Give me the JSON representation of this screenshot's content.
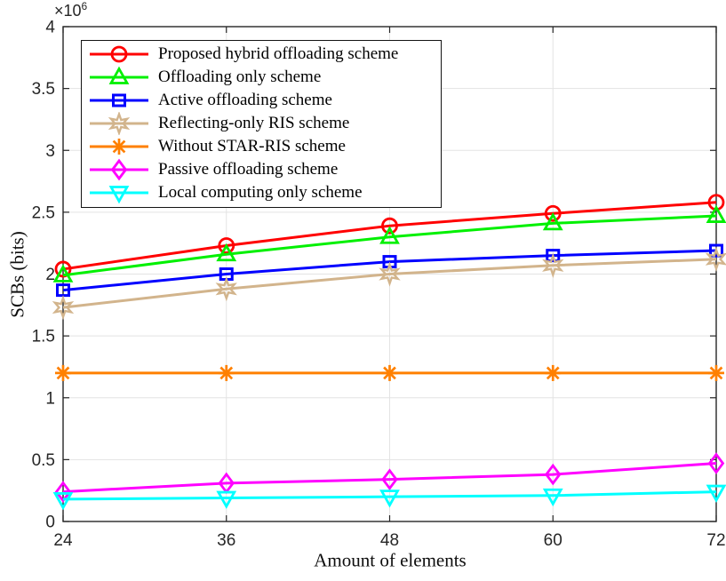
{
  "chart_data": {
    "type": "line",
    "title": "",
    "xlabel": "Amount of elements",
    "ylabel": "SCBs (bits)",
    "y_multiplier": {
      "base": "×10",
      "exp": "6"
    },
    "xlim": [
      24,
      72
    ],
    "ylim": [
      0,
      4000000
    ],
    "grid": true,
    "legend_position": "top-left",
    "x_tick_values": [
      24,
      36,
      48,
      60,
      72
    ],
    "x_tick_labels": [
      "24",
      "36",
      "48",
      "60",
      "72"
    ],
    "y_tick_values": [
      0,
      500000,
      1000000,
      1500000,
      2000000,
      2500000,
      3000000,
      3500000,
      4000000
    ],
    "y_tick_labels": [
      "0",
      "0.5",
      "1",
      "1.5",
      "2",
      "2.5",
      "3",
      "3.5",
      "4"
    ],
    "x": [
      24,
      36,
      48,
      60,
      72
    ],
    "series": [
      {
        "name": "Proposed hybrid offloading scheme",
        "color": "#ff0000",
        "marker": "circle",
        "values": [
          2040000,
          2230000,
          2390000,
          2490000,
          2580000
        ]
      },
      {
        "name": "Offloading only scheme",
        "color": "#00f000",
        "marker": "triangle-up",
        "values": [
          1990000,
          2160000,
          2300000,
          2410000,
          2470000
        ]
      },
      {
        "name": "Active offloading scheme",
        "color": "#0000ff",
        "marker": "square",
        "values": [
          1870000,
          2000000,
          2100000,
          2150000,
          2190000
        ]
      },
      {
        "name": "Reflecting-only RIS scheme",
        "color": "#d2b48c",
        "marker": "hexagram",
        "values": [
          1730000,
          1880000,
          2000000,
          2070000,
          2120000
        ]
      },
      {
        "name": "Without STAR-RIS scheme",
        "color": "#ff8000",
        "marker": "asterisk",
        "values": [
          1200000,
          1200000,
          1200000,
          1200000,
          1200000
        ]
      },
      {
        "name": "Passive offloading scheme",
        "color": "#ff00ff",
        "marker": "diamond",
        "values": [
          240000,
          310000,
          340000,
          380000,
          470000
        ]
      },
      {
        "name": "Local computing only scheme",
        "color": "#00ffff",
        "marker": "triangle-down",
        "values": [
          180000,
          190000,
          200000,
          210000,
          240000
        ]
      }
    ],
    "colors": {
      "axis": "#262626",
      "grid": "#e3e3e3",
      "tick_label": "#262626"
    }
  }
}
